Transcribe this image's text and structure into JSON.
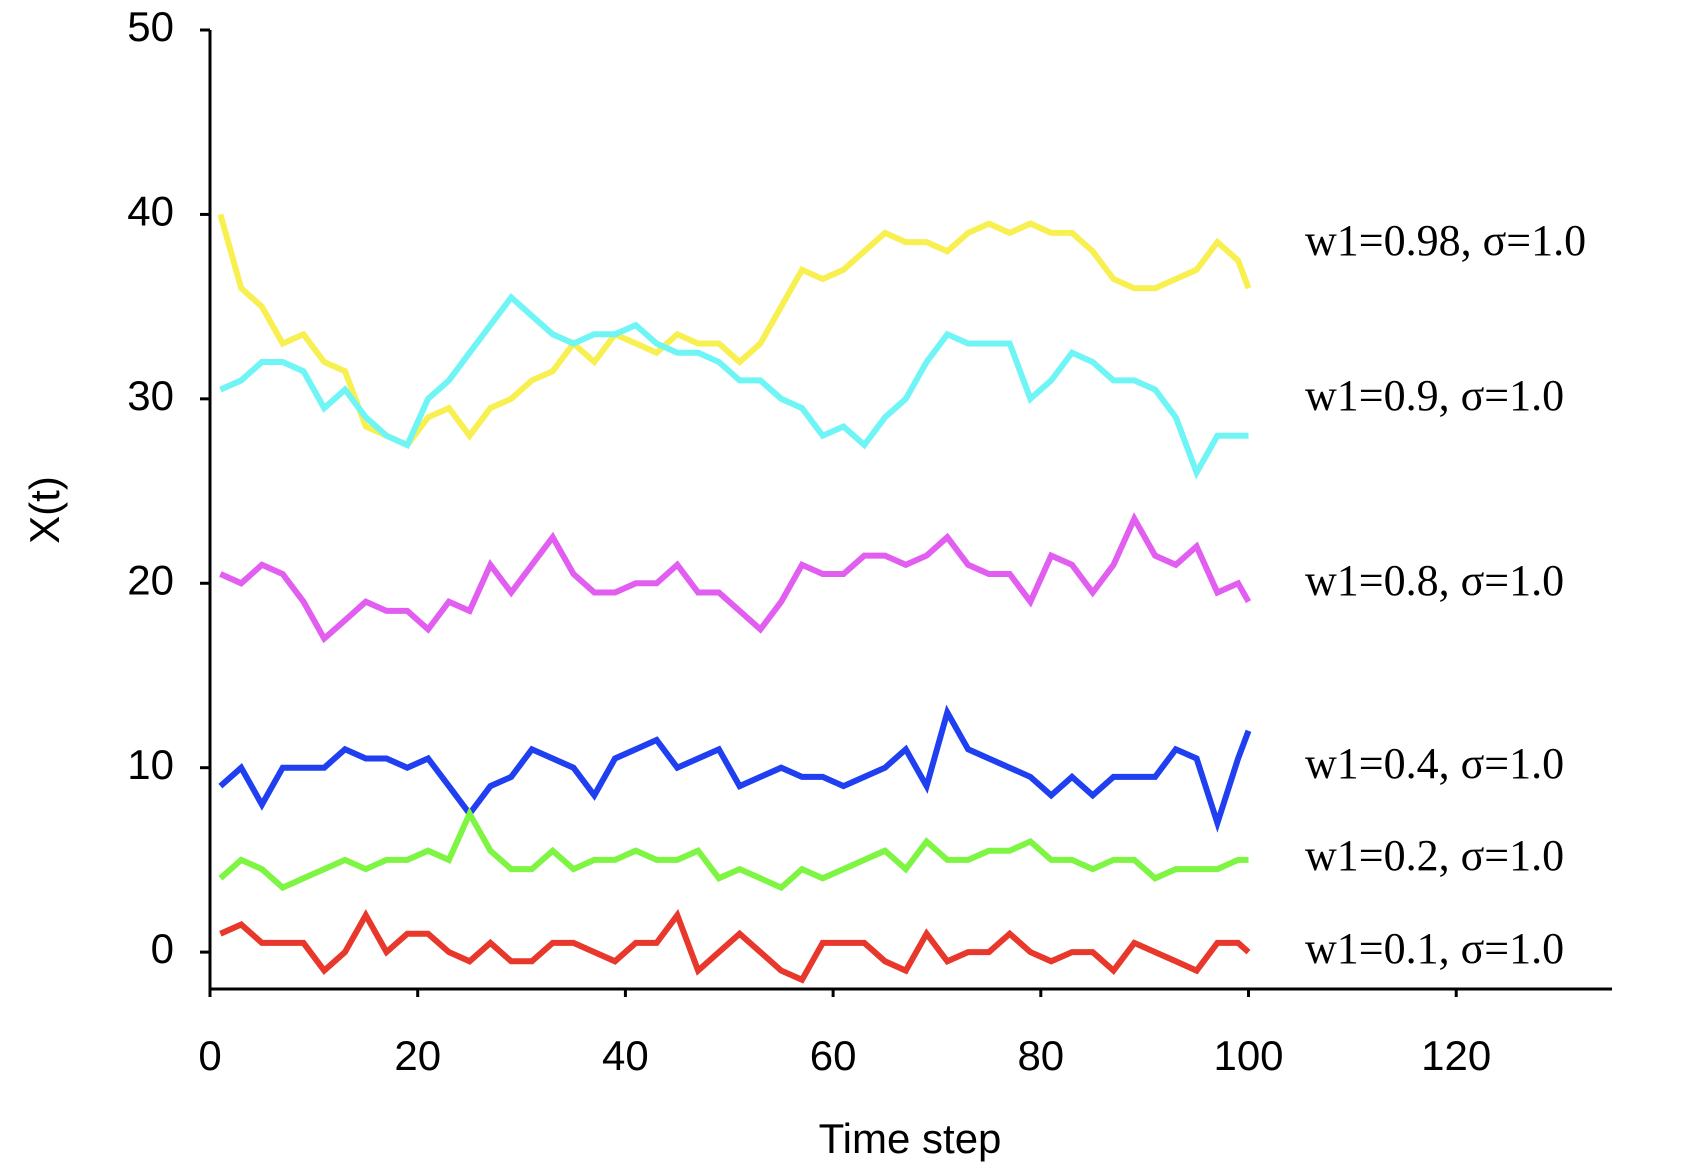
{
  "chart_data": {
    "type": "line",
    "x_label": "Time step",
    "y_label": "X(t)",
    "x": [
      1,
      3,
      5,
      7,
      9,
      11,
      13,
      15,
      17,
      19,
      21,
      23,
      25,
      27,
      29,
      31,
      33,
      35,
      37,
      39,
      41,
      43,
      45,
      47,
      49,
      51,
      53,
      55,
      57,
      59,
      61,
      63,
      65,
      67,
      69,
      71,
      73,
      75,
      77,
      79,
      81,
      83,
      85,
      87,
      89,
      91,
      93,
      95,
      97,
      99,
      100
    ],
    "series": [
      {
        "name": "w1=0.98, σ=1.0",
        "color": "#f7f050",
        "values": [
          40,
          36,
          35,
          33,
          33.5,
          32,
          31.5,
          28.5,
          28,
          27.5,
          29,
          29.5,
          28,
          29.5,
          30,
          31,
          31.5,
          33,
          32,
          33.5,
          33,
          32.5,
          33.5,
          33,
          33,
          32,
          33,
          35,
          37,
          36.5,
          37,
          38,
          39,
          38.5,
          38.5,
          38,
          39,
          39.5,
          39,
          39.5,
          39,
          39,
          38,
          36.5,
          36,
          36,
          36.5,
          37,
          38.5,
          37.5,
          36
        ]
      },
      {
        "name": "w1=0.9, σ=1.0",
        "color": "#6ff5f5",
        "values": [
          30.5,
          31,
          32,
          32,
          31.5,
          29.5,
          30.5,
          29,
          28,
          27.5,
          30,
          31,
          32.5,
          34,
          35.5,
          34.5,
          33.5,
          33,
          33.5,
          33.5,
          34,
          33,
          32.5,
          32.5,
          32,
          31,
          31,
          30,
          29.5,
          28,
          28.5,
          27.5,
          29,
          30,
          32,
          33.5,
          33,
          33,
          33,
          30,
          31,
          32.5,
          32,
          31,
          31,
          30.5,
          29,
          26,
          28,
          28,
          28
        ]
      },
      {
        "name": "w1=0.8, σ=1.0",
        "color": "#e15ef0",
        "values": [
          20.5,
          20,
          21,
          20.5,
          19,
          17,
          18,
          19,
          18.5,
          18.5,
          17.5,
          19,
          18.5,
          21,
          19.5,
          21,
          22.5,
          20.5,
          19.5,
          19.5,
          20,
          20,
          21,
          19.5,
          19.5,
          18.5,
          17.5,
          19,
          21,
          20.5,
          20.5,
          21.5,
          21.5,
          21,
          21.5,
          22.5,
          21,
          20.5,
          20.5,
          19,
          21.5,
          21,
          19.5,
          21,
          23.5,
          21.5,
          21,
          22,
          19.5,
          20,
          19
        ]
      },
      {
        "name": "w1=0.4, σ=1.0",
        "color": "#1f3ff0",
        "values": [
          9,
          10,
          8,
          10,
          10,
          10,
          11,
          10.5,
          10.5,
          10,
          10.5,
          9,
          7.5,
          9,
          9.5,
          11,
          10.5,
          10,
          8.5,
          10.5,
          11,
          11.5,
          10,
          10.5,
          11,
          9,
          9.5,
          10,
          9.5,
          9.5,
          9,
          9.5,
          10,
          11,
          9,
          13,
          11,
          10.5,
          10,
          9.5,
          8.5,
          9.5,
          8.5,
          9.5,
          9.5,
          9.5,
          11,
          10.5,
          7,
          10.5,
          12
        ]
      },
      {
        "name": "w1=0.2, σ=1.0",
        "color": "#7ef542",
        "values": [
          4,
          5,
          4.5,
          3.5,
          4,
          4.5,
          5,
          4.5,
          5,
          5,
          5.5,
          5,
          7.5,
          5.5,
          4.5,
          4.5,
          5.5,
          4.5,
          5,
          5,
          5.5,
          5,
          5,
          5.5,
          4,
          4.5,
          4,
          3.5,
          4.5,
          4,
          4.5,
          5,
          5.5,
          4.5,
          6,
          5,
          5,
          5.5,
          5.5,
          6,
          5,
          5,
          4.5,
          5,
          5,
          4,
          4.5,
          4.5,
          4.5,
          5,
          5
        ]
      },
      {
        "name": "w1=0.1, σ=1.0",
        "color": "#e8372b",
        "values": [
          1,
          1.5,
          0.5,
          0.5,
          0.5,
          -1,
          0,
          2,
          0,
          1,
          1,
          0,
          -0.5,
          0.5,
          -0.5,
          -0.5,
          0.5,
          0.5,
          0,
          -0.5,
          0.5,
          0.5,
          2,
          -1,
          0,
          1,
          0,
          -1,
          -1.5,
          0.5,
          0.5,
          0.5,
          -0.5,
          -1,
          1,
          -0.5,
          0,
          0,
          1,
          0,
          -0.5,
          0,
          0,
          -1,
          0.5,
          0,
          -0.5,
          -1,
          0.5,
          0.5,
          0
        ]
      }
    ],
    "xlim": [
      0,
      135
    ],
    "ylim": [
      -2,
      50
    ],
    "xticks": [
      0,
      20,
      40,
      60,
      80,
      100,
      120
    ],
    "yticks": [
      0,
      10,
      20,
      30,
      40,
      50
    ],
    "grid": false
  }
}
